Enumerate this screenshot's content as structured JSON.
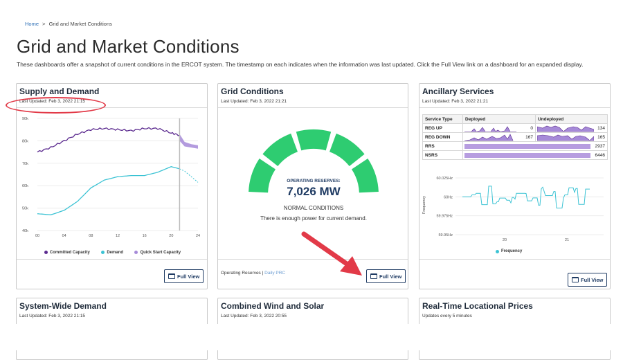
{
  "breadcrumb": {
    "home": "Home",
    "separator": ">",
    "current": "Grid and Market Conditions"
  },
  "page": {
    "title": "Grid and Market Conditions",
    "intro": "These dashboards offer a snapshot of current conditions in the ERCOT system. The timestamp on each indicates when the information was last updated. Click the Full View link on a dashboard for an expanded display."
  },
  "full_view_label": "Full View",
  "supply_demand": {
    "title": "Supply and Demand",
    "updated": "Last Updated: Feb 3, 2022 21:15",
    "legend": [
      "Committed Capacity",
      "Demand",
      "Quick Start Capacity"
    ],
    "colors": {
      "committed": "#5b2a8f",
      "demand": "#3cc3d4",
      "quick_start": "#a68ad8"
    }
  },
  "grid_conditions": {
    "title": "Grid Conditions",
    "updated": "Last Updated: Feb 3, 2022 21:21",
    "reserves_label": "OPERATING RESERVES:",
    "reserves_value": "7,026 MW",
    "status": "NORMAL CONDITIONS",
    "message": "There is enough power for current demand.",
    "footer_label": "Operating Reserves |",
    "footer_link": "Daily PRC",
    "gauge_color": "#2ecc71"
  },
  "ancillary": {
    "title": "Ancillary Services",
    "updated": "Last Updated: Feb 3, 2022 21:21",
    "headers": [
      "Service Type",
      "Deployed",
      "Undeployed"
    ],
    "rows": [
      {
        "type": "REG UP",
        "deployed": "0",
        "undeployed": "134"
      },
      {
        "type": "REG DOWN",
        "deployed": "167",
        "undeployed": "165"
      },
      {
        "type": "RRS",
        "total": "2937"
      },
      {
        "type": "NSRS",
        "total": "6446"
      }
    ],
    "freq_ylabel": "Frequency",
    "freq_legend": "Frequency"
  },
  "system_demand": {
    "title": "System-Wide Demand",
    "updated": "Last Updated: Feb 3, 2022 21:15"
  },
  "wind_solar": {
    "title": "Combined Wind and Solar",
    "updated": "Last Updated: Feb 3, 2022 20:55"
  },
  "lmp": {
    "title": "Real-Time Locational Prices",
    "updated": "Updates every 5 minutes"
  },
  "chart_data": [
    {
      "type": "line",
      "x": [
        0,
        2,
        4,
        6,
        8,
        10,
        12,
        14,
        16,
        18,
        20,
        21.25
      ],
      "xticks": [
        "00",
        "04",
        "08",
        "12",
        "16",
        "20",
        "24"
      ],
      "yticks": [
        "40k",
        "50k",
        "60k",
        "70k",
        "80k",
        "90k"
      ],
      "ylim": [
        40000,
        90000
      ],
      "xlim": [
        0,
        24
      ],
      "series": [
        {
          "name": "Committed Capacity",
          "values": [
            75000,
            77000,
            80000,
            83000,
            85000,
            85500,
            85000,
            84500,
            85500,
            85500,
            83500,
            82500
          ]
        },
        {
          "name": "Demand",
          "values": [
            47500,
            47000,
            49000,
            53000,
            59000,
            62500,
            64000,
            64500,
            64500,
            66000,
            68500,
            67500
          ]
        }
      ],
      "demand_forecast": {
        "x": [
          21.25,
          22,
          23,
          24
        ],
        "values": [
          67500,
          66500,
          64000,
          61500
        ]
      },
      "quick_start": {
        "x": [
          21.25,
          22,
          23,
          24
        ],
        "upper": [
          83000,
          79500,
          78500,
          78000
        ],
        "lower": [
          80000,
          77500,
          77000,
          76500
        ]
      }
    },
    {
      "type": "line",
      "name": "Frequency",
      "yticks": [
        "59.95Hz",
        "59.975Hz",
        "60Hz",
        "60.025Hz"
      ],
      "xticks": [
        "20",
        "21"
      ],
      "ylim": [
        59.95,
        60.025
      ]
    }
  ]
}
